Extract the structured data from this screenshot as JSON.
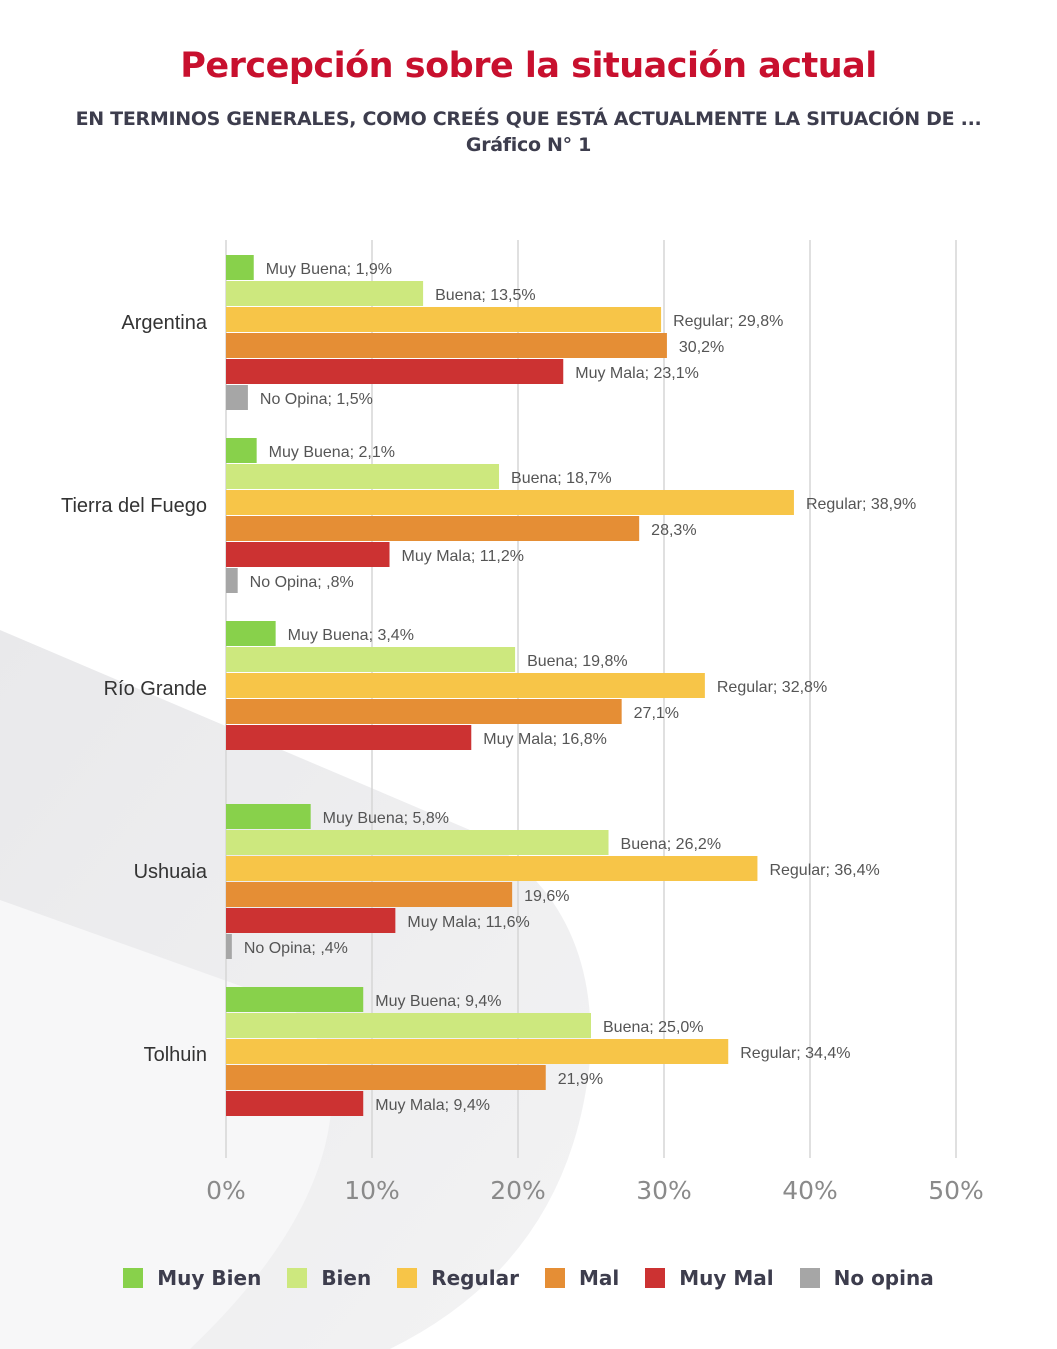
{
  "title": "Percepción sobre la situación actual",
  "subtitle_line1": "EN TERMINOS GENERALES, COMO CREÉS QUE ESTÁ ACTUALMENTE LA SITUACIÓN DE ...",
  "subtitle_line2": "Gráfico N° 1",
  "colors": {
    "Muy Bien": "#88d14b",
    "Bien": "#cde87e",
    "Regular": "#f7c548",
    "Mal": "#e58e35",
    "Muy Mal": "#cc3232",
    "No opina": "#a6a6a6",
    "title": "#c8102e"
  },
  "legend": [
    {
      "label": "Muy Bien",
      "color": "#88d14b"
    },
    {
      "label": "Bien",
      "color": "#cde87e"
    },
    {
      "label": "Regular",
      "color": "#f7c548"
    },
    {
      "label": "Mal",
      "color": "#e58e35"
    },
    {
      "label": "Muy Mal",
      "color": "#cc3232"
    },
    {
      "label": "No opina",
      "color": "#a6a6a6"
    }
  ],
  "chart_data": {
    "type": "bar",
    "orientation": "horizontal",
    "xlim": [
      0,
      50
    ],
    "xticks": [
      "0%",
      "10%",
      "20%",
      "30%",
      "40%",
      "50%"
    ],
    "grid": true,
    "legend_position": "bottom",
    "groups": [
      {
        "category": "Argentina",
        "bars": [
          {
            "series": "Muy Bien",
            "value": 1.9,
            "label": "Muy Buena; 1,9%"
          },
          {
            "series": "Bien",
            "value": 13.5,
            "label": "Buena; 13,5%"
          },
          {
            "series": "Regular",
            "value": 29.8,
            "label": "Regular; 29,8%"
          },
          {
            "series": "Mal",
            "value": 30.2,
            "label": "30,2%"
          },
          {
            "series": "Muy Mal",
            "value": 23.1,
            "label": "Muy Mala; 23,1%"
          },
          {
            "series": "No opina",
            "value": 1.5,
            "label": "No Opina; 1,5%"
          }
        ]
      },
      {
        "category": "Tierra del Fuego",
        "bars": [
          {
            "series": "Muy Bien",
            "value": 2.1,
            "label": "Muy Buena; 2,1%"
          },
          {
            "series": "Bien",
            "value": 18.7,
            "label": "Buena; 18,7%"
          },
          {
            "series": "Regular",
            "value": 38.9,
            "label": "Regular; 38,9%"
          },
          {
            "series": "Mal",
            "value": 28.3,
            "label": "28,3%"
          },
          {
            "series": "Muy Mal",
            "value": 11.2,
            "label": "Muy Mala; 11,2%"
          },
          {
            "series": "No opina",
            "value": 0.8,
            "label": "No Opina; ,8%"
          }
        ]
      },
      {
        "category": "Río Grande",
        "bars": [
          {
            "series": "Muy Bien",
            "value": 3.4,
            "label": "Muy Buena; 3,4%"
          },
          {
            "series": "Bien",
            "value": 19.8,
            "label": "Buena; 19,8%"
          },
          {
            "series": "Regular",
            "value": 32.8,
            "label": "Regular; 32,8%"
          },
          {
            "series": "Mal",
            "value": 27.1,
            "label": "27,1%"
          },
          {
            "series": "Muy Mal",
            "value": 16.8,
            "label": "Muy Mala; 16,8%"
          }
        ]
      },
      {
        "category": "Ushuaia",
        "bars": [
          {
            "series": "Muy Bien",
            "value": 5.8,
            "label": "Muy Buena; 5,8%"
          },
          {
            "series": "Bien",
            "value": 26.2,
            "label": "Buena; 26,2%"
          },
          {
            "series": "Regular",
            "value": 36.4,
            "label": "Regular; 36,4%"
          },
          {
            "series": "Mal",
            "value": 19.6,
            "label": "19,6%"
          },
          {
            "series": "Muy Mal",
            "value": 11.6,
            "label": "Muy Mala; 11,6%"
          },
          {
            "series": "No opina",
            "value": 0.4,
            "label": "No Opina; ,4%"
          }
        ]
      },
      {
        "category": "Tolhuin",
        "bars": [
          {
            "series": "Muy Bien",
            "value": 9.4,
            "label": "Muy Buena; 9,4%"
          },
          {
            "series": "Bien",
            "value": 25.0,
            "label": "Buena; 25,0%"
          },
          {
            "series": "Regular",
            "value": 34.4,
            "label": "Regular; 34,4%"
          },
          {
            "series": "Mal",
            "value": 21.9,
            "label": "21,9%"
          },
          {
            "series": "Muy Mal",
            "value": 9.4,
            "label": "Muy Mala; 9,4%"
          }
        ]
      }
    ]
  }
}
